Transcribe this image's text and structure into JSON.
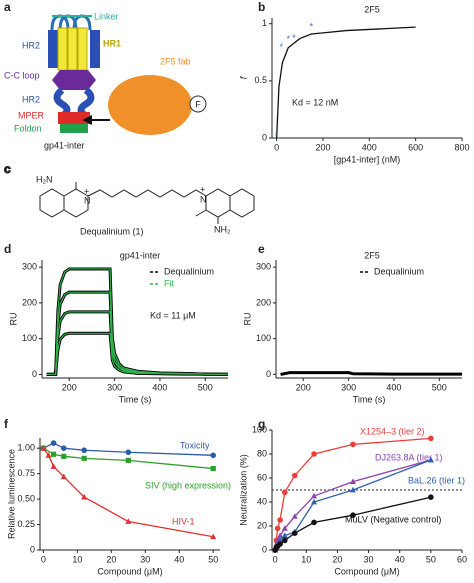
{
  "diagram_a": {
    "panel_label": "a",
    "linker": "Linker",
    "hr1": "HR1",
    "hr2_top": "HR2",
    "cc_loop": "C-C loop",
    "hr2_bottom": "HR2",
    "mper": "MPER",
    "foldon": "Foldon",
    "construct": "gp41-inter",
    "fab": "2F5 fab",
    "fab_symbol": "F"
  },
  "diagram_c": {
    "panel_label": "c",
    "amine_left": "H₂N",
    "nitrogen_left": "N",
    "charge_left": "+",
    "nitrogen_right": "N",
    "charge_right": "+",
    "amine_right": "NH₂",
    "compound": "Dequalinium (1)"
  },
  "chart_data": [
    {
      "type": "line",
      "panel_label": "b",
      "title": "2F5",
      "xlabel": "[gp41-inter] (nM)",
      "ylabel": "f",
      "xlim": [
        -20,
        800
      ],
      "ylim": [
        0,
        1.05
      ],
      "xticks": [
        0,
        200,
        400,
        600,
        800
      ],
      "yticks": [
        0,
        0.5,
        1
      ],
      "annotations": [
        "Kd = 12 nM"
      ],
      "series": [
        {
          "color": "#111111",
          "marker": "none",
          "x": [
            0,
            10,
            25,
            50,
            100,
            150,
            200,
            300,
            400,
            500,
            600
          ],
          "values": [
            0,
            0.45,
            0.66,
            0.79,
            0.87,
            0.91,
            0.92,
            0.94,
            0.95,
            0.96,
            0.97
          ]
        },
        {
          "color": "#3a6fc4",
          "marker": "star",
          "line": false,
          "x": [
            0,
            20,
            50,
            75,
            150
          ],
          "values": [
            0.02,
            0.8,
            0.87,
            0.88,
            0.98
          ]
        }
      ]
    },
    {
      "type": "line",
      "panel_label": "d",
      "title": "gp41-inter",
      "xlabel": "Time (s)",
      "ylabel": "RU",
      "xlim": [
        140,
        550
      ],
      "ylim": [
        -10,
        320
      ],
      "xticks": [
        200,
        300,
        400,
        500
      ],
      "yticks": [
        0,
        100,
        200,
        300
      ],
      "annotations": [
        "Kd = 11 μM"
      ],
      "x": [
        150,
        170,
        175,
        180,
        190,
        200,
        230,
        260,
        290,
        295,
        300,
        310,
        320,
        350,
        400,
        450,
        500,
        550
      ],
      "series": [
        {
          "name": "Dequalinium",
          "color": "#000000",
          "width": 3,
          "values": [
            0,
            0,
            177,
            251,
            286,
            295,
            295,
            295,
            295,
            103,
            59,
            30,
            18,
            9,
            4,
            3,
            1,
            0
          ]
        },
        {
          "color": "#000000",
          "width": 3,
          "values": [
            0,
            0,
            138,
            196,
            223,
            230,
            230,
            230,
            230,
            81,
            46,
            23,
            14,
            7,
            3,
            2,
            1,
            0
          ]
        },
        {
          "color": "#000000",
          "width": 3,
          "values": [
            0,
            0,
            105,
            149,
            170,
            175,
            175,
            175,
            175,
            61,
            35,
            18,
            11,
            5,
            3,
            2,
            1,
            0
          ]
        },
        {
          "color": "#000000",
          "width": 3,
          "values": [
            0,
            0,
            69,
            98,
            112,
            115,
            115,
            115,
            115,
            40,
            23,
            12,
            7,
            3,
            2,
            1,
            1,
            0
          ]
        },
        {
          "name": "Fit",
          "color": "#2fb34a",
          "width": 1.2,
          "values": [
            0,
            0,
            177,
            251,
            286,
            295,
            295,
            295,
            295,
            103,
            59,
            30,
            18,
            9,
            4,
            3,
            1,
            0
          ]
        },
        {
          "color": "#2fb34a",
          "width": 1.2,
          "values": [
            0,
            0,
            138,
            196,
            223,
            230,
            230,
            230,
            230,
            81,
            46,
            23,
            14,
            7,
            3,
            2,
            1,
            0
          ]
        },
        {
          "color": "#2fb34a",
          "width": 1.2,
          "values": [
            0,
            0,
            105,
            149,
            170,
            175,
            175,
            175,
            175,
            61,
            35,
            18,
            11,
            5,
            3,
            2,
            1,
            0
          ]
        },
        {
          "color": "#2fb34a",
          "width": 1.2,
          "values": [
            0,
            0,
            69,
            98,
            112,
            115,
            115,
            115,
            115,
            40,
            23,
            12,
            7,
            3,
            2,
            1,
            1,
            0
          ]
        }
      ]
    },
    {
      "type": "line",
      "panel_label": "e",
      "title": "2F5",
      "xlabel": "Time (s)",
      "ylabel": "RU",
      "xlim": [
        140,
        550
      ],
      "ylim": [
        -10,
        320
      ],
      "xticks": [
        200,
        300,
        400,
        500
      ],
      "yticks": [
        0,
        100,
        200,
        300
      ],
      "x": [
        150,
        170,
        200,
        250,
        300,
        310,
        400,
        550
      ],
      "series": [
        {
          "name": "Dequalinium",
          "color": "#000000",
          "width": 3,
          "values": [
            0,
            5,
            5,
            5,
            5,
            2,
            1,
            1
          ]
        }
      ]
    },
    {
      "type": "line",
      "panel_label": "f",
      "xlabel": "Compound (μM)",
      "ylabel": "Relative luminescence",
      "xlim": [
        -1,
        52
      ],
      "ylim": [
        0,
        1.1
      ],
      "xticks": [
        0,
        10,
        20,
        30,
        40,
        50
      ],
      "yticks": [
        0,
        0.25,
        {
          "value": 0.5,
          "label": "0.50"
        },
        0.75,
        {
          "value": 1,
          "label": "1.00"
        }
      ],
      "series": [
        {
          "name": "Toxicity",
          "color": "#2a5caa",
          "marker": "circle",
          "x": [
            0,
            3,
            6,
            12,
            25,
            50
          ],
          "values": [
            1.0,
            1.05,
            1.0,
            0.98,
            0.96,
            0.93
          ]
        },
        {
          "name": "SIV (high expression)",
          "color": "#2ca02c",
          "marker": "square",
          "x": [
            0,
            3,
            6,
            12,
            25,
            50
          ],
          "values": [
            1.0,
            0.94,
            0.92,
            0.9,
            0.88,
            0.8
          ]
        },
        {
          "name": "HIV-1",
          "color": "#e03030",
          "marker": "triangle",
          "x": [
            0,
            1.5,
            3,
            6,
            12,
            25,
            50
          ],
          "values": [
            1.0,
            0.93,
            0.82,
            0.72,
            0.52,
            0.28,
            0.13
          ]
        }
      ]
    },
    {
      "type": "line",
      "panel_label": "g",
      "xlabel": "Compound (μM)",
      "ylabel": "Neutralization (%)",
      "xlim": [
        -1,
        60
      ],
      "ylim": [
        0,
        100
      ],
      "xticks": [
        0,
        10,
        20,
        30,
        40,
        50,
        60
      ],
      "yticks": [
        0,
        20,
        40,
        60,
        80,
        100
      ],
      "reference_line": 50,
      "x": [
        0,
        0.4,
        0.8,
        1.6,
        3.1,
        6.3,
        12.5,
        25,
        50
      ],
      "series": [
        {
          "name": "X1254–3 (tier 2)",
          "color": "#e8403a",
          "marker": "circle",
          "values": [
            0,
            8,
            18,
            25,
            48,
            62,
            80,
            88,
            93
          ]
        },
        {
          "name": "DJ263.8A (tier 1)",
          "color": "#8e44ad",
          "marker": "triangle",
          "values": [
            0,
            5,
            8,
            12,
            18,
            28,
            45,
            57,
            75
          ]
        },
        {
          "name": "BaL.26 (tier 1)",
          "color": "#2f5fb3",
          "marker": "triangle",
          "values": [
            0,
            3,
            5,
            8,
            12,
            15,
            40,
            50,
            75
          ]
        },
        {
          "name": "MuLV (Negative control)",
          "color": "#111111",
          "marker": "circle",
          "values": [
            0,
            2,
            3,
            5,
            8,
            14,
            23,
            29,
            44
          ]
        }
      ]
    }
  ]
}
